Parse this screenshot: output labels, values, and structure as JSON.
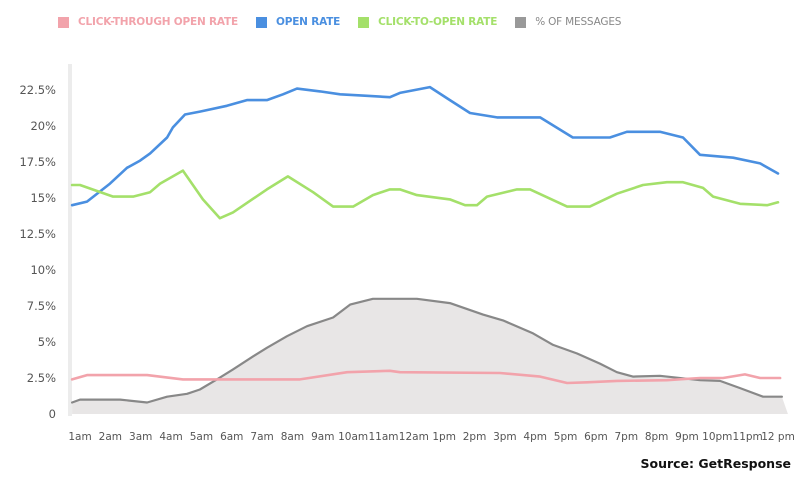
{
  "chart_data": {
    "type": "line",
    "title": "",
    "xlabel": "",
    "ylabel": "",
    "ylim": [
      0,
      24
    ],
    "grid": false,
    "legend_position": "top",
    "y_ticks": [
      {
        "value": 0,
        "label": "0"
      },
      {
        "value": 2.5,
        "label": "2.5%"
      },
      {
        "value": 5,
        "label": "5%"
      },
      {
        "value": 7.5,
        "label": "7.5%"
      },
      {
        "value": 10,
        "label": "10%"
      },
      {
        "value": 12.5,
        "label": "12.5%"
      },
      {
        "value": 15,
        "label": "15%"
      },
      {
        "value": 17.5,
        "label": "17.5%"
      },
      {
        "value": 20,
        "label": "20%"
      },
      {
        "value": 22.5,
        "label": "22.5%"
      }
    ],
    "x_ticks": [
      "1am",
      "2am",
      "3am",
      "4am",
      "5am",
      "6am",
      "7am",
      "8am",
      "9am",
      "10am",
      "11am",
      "12am",
      "1pm",
      "2pm",
      "3pm",
      "4pm",
      "5pm",
      "6pm",
      "7pm",
      "8pm",
      "9pm",
      "10pm",
      "11pm",
      "12 pm"
    ],
    "series": [
      {
        "name": "CLICK-THROUGH OPEN RATE",
        "color": "#f2a3ab",
        "style": "line",
        "x": [
          0.74,
          1.23,
          3.21,
          4.39,
          8.25,
          9.8,
          11.21,
          11.54,
          14.84,
          16.16,
          17.05,
          17.71,
          18.69,
          20.34,
          21.43,
          22.19,
          22.91,
          23.41,
          24.07
        ],
        "y": [
          2.4,
          2.7,
          2.7,
          2.4,
          2.4,
          2.9,
          3.0,
          2.9,
          2.85,
          2.6,
          2.15,
          2.2,
          2.3,
          2.35,
          2.5,
          2.5,
          2.75,
          2.5,
          2.5
        ]
      },
      {
        "name": "OPEN RATE",
        "color": "#4a8fe0",
        "style": "line",
        "x": [
          0.74,
          1.23,
          1.99,
          2.55,
          2.98,
          3.31,
          3.87,
          4.06,
          4.46,
          4.95,
          5.84,
          6.5,
          7.16,
          7.69,
          8.15,
          8.91,
          9.57,
          10.46,
          11.21,
          11.54,
          12.53,
          13.19,
          13.85,
          14.74,
          16.16,
          17.24,
          18.46,
          19.02,
          20.11,
          20.87,
          21.43,
          22.52,
          23.41,
          24.0
        ],
        "y": [
          14.5,
          14.75,
          16.0,
          17.1,
          17.6,
          18.1,
          19.2,
          19.9,
          20.8,
          21.0,
          21.4,
          21.8,
          21.8,
          22.2,
          22.6,
          22.4,
          22.2,
          22.1,
          22.0,
          22.3,
          22.7,
          21.8,
          20.9,
          20.6,
          20.6,
          19.2,
          19.2,
          19.6,
          19.6,
          19.2,
          18.0,
          17.8,
          17.4,
          16.7
        ]
      },
      {
        "name": "CLICK-TO-OPEN RATE",
        "color": "#a4e06a",
        "style": "line",
        "x": [
          0.74,
          1.0,
          2.09,
          2.75,
          3.31,
          3.64,
          4.39,
          4.72,
          5.05,
          5.61,
          6.04,
          7.16,
          7.85,
          8.68,
          9.34,
          10.0,
          10.65,
          11.21,
          11.54,
          12.1,
          13.19,
          13.69,
          14.08,
          14.41,
          15.4,
          15.83,
          17.05,
          17.8,
          18.69,
          19.55,
          20.34,
          20.87,
          21.53,
          21.86,
          22.75,
          23.64,
          24.0
        ],
        "y": [
          15.9,
          15.9,
          15.1,
          15.1,
          15.4,
          16.0,
          16.9,
          15.9,
          14.9,
          13.6,
          14.0,
          15.6,
          16.5,
          15.4,
          14.4,
          14.4,
          15.2,
          15.6,
          15.6,
          15.2,
          14.9,
          14.5,
          14.5,
          15.1,
          15.6,
          15.6,
          14.4,
          14.4,
          15.3,
          15.9,
          16.1,
          16.1,
          15.7,
          15.1,
          14.6,
          14.5,
          14.7
        ]
      },
      {
        "name": "% OF MESSAGES",
        "color": "#888888",
        "fill": "#e8e6e6",
        "style": "area",
        "x": [
          0.74,
          1.0,
          2.32,
          3.21,
          3.87,
          4.53,
          4.95,
          5.51,
          6.04,
          6.7,
          7.16,
          7.82,
          8.48,
          9.34,
          9.9,
          10.65,
          11.21,
          11.54,
          12.1,
          13.19,
          14.28,
          14.94,
          15.93,
          16.59,
          17.38,
          18.13,
          18.69,
          19.22,
          20.11,
          21.43,
          22.09,
          22.75,
          23.51,
          24.13
        ],
        "y": [
          0.8,
          1.0,
          1.0,
          0.8,
          1.2,
          1.4,
          1.7,
          2.4,
          3.1,
          4.0,
          4.6,
          5.4,
          6.1,
          6.7,
          7.6,
          8.0,
          8.0,
          8.0,
          8.0,
          7.7,
          6.9,
          6.5,
          5.6,
          4.8,
          4.2,
          3.5,
          2.9,
          2.6,
          2.65,
          2.35,
          2.3,
          1.8,
          1.2,
          1.2
        ]
      }
    ]
  },
  "source": "Source: GetResponse"
}
